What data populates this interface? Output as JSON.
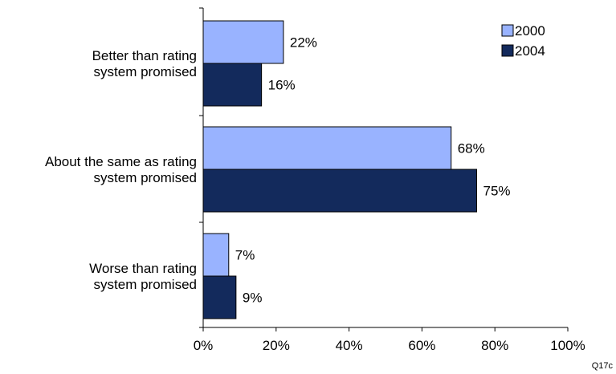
{
  "chart_data": {
    "type": "bar",
    "orientation": "horizontal",
    "categories": [
      [
        "Better than rating",
        "system promised"
      ],
      [
        "About the same as rating",
        "system promised"
      ],
      [
        "Worse than rating",
        "system promised"
      ]
    ],
    "series": [
      {
        "name": "2000",
        "values": [
          22,
          68,
          7
        ],
        "labels": [
          "22%",
          "68%",
          "7%"
        ],
        "color": "#99b3ff"
      },
      {
        "name": "2004",
        "values": [
          16,
          75,
          9
        ],
        "labels": [
          "16%",
          "75%",
          "9%"
        ],
        "color": "#132a5c"
      }
    ],
    "xlim": [
      0,
      100
    ],
    "xticks": [
      "0%",
      "20%",
      "40%",
      "60%",
      "80%",
      "100%"
    ],
    "grid": false,
    "legend_position": "top-right",
    "title": "",
    "xlabel": "",
    "ylabel": ""
  },
  "footnote": "Q17c"
}
